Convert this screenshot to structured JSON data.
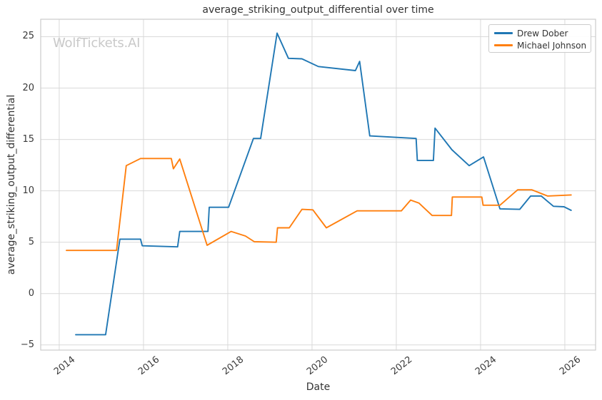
{
  "figure": {
    "watermark": "WolfTickets.AI"
  },
  "colors": {
    "series_blue": "#1f77b4",
    "series_orange": "#ff7f0e",
    "grid": "#d9d9d9",
    "spine": "#cccccc",
    "text": "#3a3a3a",
    "watermark": "#c9c9c9"
  },
  "chart_data": {
    "type": "line",
    "title": "average_striking_output_differential over time",
    "xlabel": "Date",
    "ylabel": "average_striking_output_differential",
    "xlim": [
      2013.56,
      2026.73
    ],
    "ylim": [
      -5.5,
      26.7
    ],
    "x_ticks": [
      2014,
      2016,
      2018,
      2020,
      2022,
      2024,
      2026
    ],
    "x_tick_labels": [
      "2014",
      "2016",
      "2018",
      "2020",
      "2022",
      "2024",
      "2026"
    ],
    "y_ticks": [
      -5,
      0,
      5,
      10,
      15,
      20,
      25
    ],
    "y_tick_labels": [
      "−5",
      "0",
      "5",
      "10",
      "15",
      "20",
      "25"
    ],
    "grid": true,
    "legend_position": "upper right",
    "series": [
      {
        "name": "Drew Dober",
        "color": "#1f77b4",
        "points": [
          [
            2014.39,
            -4.0
          ],
          [
            2015.1,
            -4.0
          ],
          [
            2015.44,
            5.3
          ],
          [
            2015.93,
            5.3
          ],
          [
            2015.97,
            4.65
          ],
          [
            2016.81,
            4.55
          ],
          [
            2016.86,
            6.05
          ],
          [
            2017.53,
            6.05
          ],
          [
            2017.56,
            8.4
          ],
          [
            2018.02,
            8.4
          ],
          [
            2018.61,
            15.1
          ],
          [
            2018.78,
            15.1
          ],
          [
            2019.17,
            25.35
          ],
          [
            2019.44,
            22.9
          ],
          [
            2019.76,
            22.85
          ],
          [
            2020.15,
            22.1
          ],
          [
            2021.03,
            21.7
          ],
          [
            2021.13,
            22.6
          ],
          [
            2021.37,
            15.35
          ],
          [
            2022.47,
            15.1
          ],
          [
            2022.5,
            12.95
          ],
          [
            2022.88,
            12.95
          ],
          [
            2022.92,
            16.1
          ],
          [
            2023.32,
            14.0
          ],
          [
            2023.73,
            12.45
          ],
          [
            2024.07,
            13.3
          ],
          [
            2024.46,
            8.25
          ],
          [
            2024.93,
            8.2
          ],
          [
            2025.19,
            9.5
          ],
          [
            2025.44,
            9.5
          ],
          [
            2025.73,
            8.5
          ],
          [
            2025.98,
            8.45
          ],
          [
            2026.15,
            8.1
          ]
        ]
      },
      {
        "name": "Michael Johnson",
        "color": "#ff7f0e",
        "points": [
          [
            2014.17,
            4.2
          ],
          [
            2015.36,
            4.2
          ],
          [
            2015.59,
            12.45
          ],
          [
            2015.93,
            13.15
          ],
          [
            2016.66,
            13.15
          ],
          [
            2016.71,
            12.15
          ],
          [
            2016.86,
            13.1
          ],
          [
            2017.51,
            4.7
          ],
          [
            2018.08,
            6.05
          ],
          [
            2018.42,
            5.6
          ],
          [
            2018.63,
            5.05
          ],
          [
            2019.15,
            5.0
          ],
          [
            2019.18,
            6.4
          ],
          [
            2019.46,
            6.4
          ],
          [
            2019.76,
            8.2
          ],
          [
            2020.02,
            8.15
          ],
          [
            2020.34,
            6.4
          ],
          [
            2021.07,
            8.05
          ],
          [
            2022.12,
            8.05
          ],
          [
            2022.34,
            9.1
          ],
          [
            2022.54,
            8.8
          ],
          [
            2022.85,
            7.6
          ],
          [
            2023.31,
            7.6
          ],
          [
            2023.33,
            9.4
          ],
          [
            2024.03,
            9.4
          ],
          [
            2024.06,
            8.6
          ],
          [
            2024.46,
            8.6
          ],
          [
            2024.88,
            10.1
          ],
          [
            2025.22,
            10.1
          ],
          [
            2025.59,
            9.5
          ],
          [
            2026.15,
            9.6
          ]
        ]
      }
    ]
  }
}
